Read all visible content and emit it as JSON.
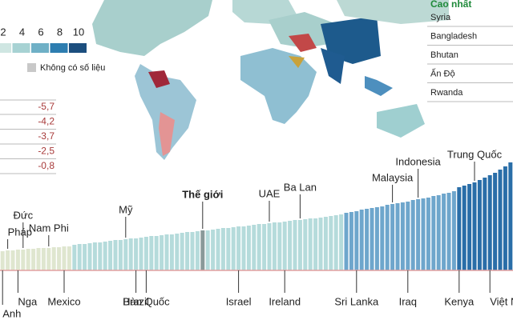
{
  "legend": {
    "ticks": [
      2,
      4,
      6,
      8,
      10
    ],
    "colors": [
      "#cfe6e2",
      "#a7d2d3",
      "#6fb0c6",
      "#2d7db0",
      "#1c4e7e"
    ],
    "no_data": "Không có số liệu",
    "no_data_color": "#c8c8c8"
  },
  "left_table": {
    "rows": [
      "-5,7",
      "-4,2",
      "-3,7",
      "-2,5",
      "-0,8"
    ]
  },
  "right_list": {
    "title": "Cao nhất",
    "rows": [
      "Syria",
      "Bangladesh",
      "Bhutan",
      "Ấn Độ",
      "Rwanda"
    ]
  },
  "chart_data": {
    "type": "bar",
    "values": [
      24,
      25,
      25,
      26,
      26,
      27,
      27,
      28,
      28,
      28,
      29,
      29,
      30,
      30,
      32,
      33,
      33,
      34,
      35,
      35,
      36,
      37,
      38,
      38,
      39,
      40,
      40,
      41,
      42,
      43,
      43,
      44,
      45,
      45,
      46,
      47,
      48,
      48,
      49,
      50,
      50,
      51,
      52,
      53,
      53,
      54,
      55,
      55,
      56,
      57,
      58,
      58,
      59,
      60,
      60,
      61,
      62,
      63,
      63,
      64,
      65,
      65,
      66,
      67,
      68,
      69,
      70,
      72,
      73,
      74,
      76,
      77,
      78,
      79,
      80,
      82,
      83,
      84,
      85,
      86,
      88,
      89,
      90,
      91,
      93,
      94,
      96,
      97,
      99,
      104,
      106,
      108,
      110,
      113,
      116,
      119,
      122,
      126,
      130,
      135
    ],
    "colors": [
      "#dfe6cf",
      "#dfe6cf",
      "#dfe6cf",
      "#dfe6cf",
      "#dfe6cf",
      "#dfe6cf",
      "#dfe6cf",
      "#dfe6cf",
      "#dfe6cf",
      "#dfe6cf",
      "#dfe6cf",
      "#dfe6cf",
      "#dfe6cf",
      "#dfe6cf",
      "#b5dbdb",
      "#b5dbdb",
      "#b5dbdb",
      "#b5dbdb",
      "#b5dbdb",
      "#b5dbdb",
      "#b5dbdb",
      "#b5dbdb",
      "#b5dbdb",
      "#b5dbdb",
      "#b5dbdb",
      "#b5dbdb",
      "#b5dbdb",
      "#b5dbdb",
      "#b5dbdb",
      "#b5dbdb",
      "#b5dbdb",
      "#b5dbdb",
      "#b5dbdb",
      "#b5dbdb",
      "#b5dbdb",
      "#b5dbdb",
      "#b5dbdb",
      "#b5dbdb",
      "#b5dbdb",
      "#8a9999",
      "#b5dbdb",
      "#b5dbdb",
      "#b5dbdb",
      "#b5dbdb",
      "#b5dbdb",
      "#b5dbdb",
      "#b5dbdb",
      "#b5dbdb",
      "#b5dbdb",
      "#b5dbdb",
      "#b5dbdb",
      "#b5dbdb",
      "#b5dbdb",
      "#b5dbdb",
      "#b5dbdb",
      "#b5dbdb",
      "#b5dbdb",
      "#b5dbdb",
      "#b5dbdb",
      "#b5dbdb",
      "#b5dbdb",
      "#b5dbdb",
      "#b5dbdb",
      "#b5dbdb",
      "#b5dbdb",
      "#b5dbdb",
      "#b5dbdb",
      "#6ea6cc",
      "#6ea6cc",
      "#6ea6cc",
      "#6ea6cc",
      "#6ea6cc",
      "#6ea6cc",
      "#6ea6cc",
      "#6ea6cc",
      "#6ea6cc",
      "#6ea6cc",
      "#6ea6cc",
      "#6ea6cc",
      "#6ea6cc",
      "#6ea6cc",
      "#6ea6cc",
      "#6ea6cc",
      "#6ea6cc",
      "#6ea6cc",
      "#6ea6cc",
      "#6ea6cc",
      "#6ea6cc",
      "#6ea6cc",
      "#2a6ea8",
      "#2a6ea8",
      "#2a6ea8",
      "#2a6ea8",
      "#2a6ea8",
      "#2a6ea8",
      "#2a6ea8",
      "#2a6ea8",
      "#2a6ea8",
      "#2a6ea8",
      "#2a6ea8"
    ],
    "top_labels": [
      null,
      "Pháp",
      null,
      null,
      "Đức",
      null,
      null,
      null,
      null,
      "Nam Phi",
      null,
      null,
      null,
      null,
      null,
      null,
      null,
      null,
      null,
      null,
      null,
      null,
      null,
      null,
      "Mỹ",
      null,
      null,
      null,
      null,
      null,
      null,
      null,
      null,
      null,
      null,
      null,
      null,
      null,
      null,
      "Thế giới",
      null,
      null,
      null,
      null,
      null,
      null,
      null,
      null,
      null,
      null,
      null,
      null,
      "UAE",
      null,
      null,
      null,
      null,
      null,
      "Ba Lan",
      null,
      null,
      null,
      null,
      null,
      null,
      null,
      null,
      null,
      null,
      null,
      null,
      null,
      null,
      null,
      null,
      null,
      "Malaysia",
      null,
      null,
      null,
      null,
      "Indonesia",
      null,
      null,
      null,
      null,
      null,
      null,
      null,
      null,
      null,
      null,
      "Trung Quốc",
      null,
      null,
      null,
      null,
      null,
      null,
      null
    ],
    "categories": [
      "Anh",
      null,
      null,
      "Nga",
      null,
      null,
      null,
      null,
      null,
      null,
      null,
      null,
      "Mexico",
      null,
      null,
      null,
      null,
      null,
      null,
      null,
      null,
      null,
      null,
      null,
      null,
      null,
      "Brazil",
      null,
      "Hàn Quốc",
      null,
      null,
      null,
      null,
      null,
      null,
      null,
      null,
      null,
      null,
      null,
      null,
      null,
      null,
      null,
      null,
      null,
      "Israel",
      null,
      null,
      null,
      null,
      null,
      null,
      null,
      null,
      "Ireland",
      null,
      null,
      null,
      null,
      null,
      null,
      null,
      null,
      null,
      null,
      null,
      null,
      null,
      "Sri Lanka",
      null,
      null,
      null,
      null,
      null,
      null,
      null,
      null,
      null,
      "Iraq",
      null,
      null,
      null,
      null,
      null,
      null,
      null,
      null,
      null,
      "Kenya",
      null,
      null,
      null,
      null,
      null,
      "Việt Nam",
      null,
      null,
      null,
      null
    ],
    "ylim": [
      0,
      140
    ],
    "baseline_color": "#e2a0a0"
  }
}
